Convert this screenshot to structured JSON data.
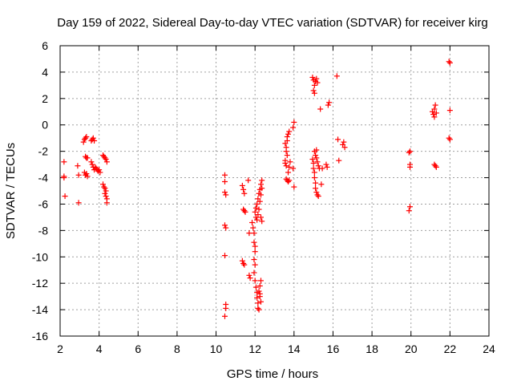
{
  "chart_data": {
    "type": "scatter",
    "title": "Day 159 of 2022, Sidereal Day-to-day VTEC variation (SDTVAR) for receiver kirg",
    "xlabel": "GPS time / hours",
    "ylabel": "SDTVAR / TECUs",
    "xlim": [
      2,
      24
    ],
    "ylim": [
      -16,
      6
    ],
    "xticks": [
      "2",
      "4",
      "6",
      "8",
      "10",
      "12",
      "14",
      "16",
      "18",
      "20",
      "22",
      "24"
    ],
    "yticks": [
      "6",
      "4",
      "2",
      "0",
      "-2",
      "-4",
      "-6",
      "-8",
      "-10",
      "-12",
      "-14",
      "-16"
    ],
    "grid": true,
    "marker": "+",
    "color": "#ff0000",
    "series": [
      {
        "name": "SDTVAR",
        "points": [
          [
            2.2,
            -2.8
          ],
          [
            2.2,
            -3.9
          ],
          [
            2.2,
            -4.0
          ],
          [
            2.25,
            -5.4
          ],
          [
            2.9,
            -3.1
          ],
          [
            2.95,
            -3.8
          ],
          [
            2.95,
            -5.9
          ],
          [
            3.2,
            -1.3
          ],
          [
            3.25,
            -1.1
          ],
          [
            3.3,
            -1.0
          ],
          [
            3.35,
            -0.9
          ],
          [
            3.3,
            -2.4
          ],
          [
            3.35,
            -2.5
          ],
          [
            3.4,
            -2.5
          ],
          [
            3.25,
            -3.6
          ],
          [
            3.3,
            -3.8
          ],
          [
            3.35,
            -3.7
          ],
          [
            3.4,
            -3.9
          ],
          [
            3.6,
            -1.2
          ],
          [
            3.65,
            -1.1
          ],
          [
            3.7,
            -1.0
          ],
          [
            3.75,
            -1.2
          ],
          [
            3.6,
            -2.8
          ],
          [
            3.65,
            -3.0
          ],
          [
            3.7,
            -3.2
          ],
          [
            3.75,
            -3.4
          ],
          [
            3.8,
            -3.2
          ],
          [
            3.85,
            -3.3
          ],
          [
            3.9,
            -3.4
          ],
          [
            3.95,
            -3.5
          ],
          [
            4.0,
            -3.4
          ],
          [
            4.05,
            -3.6
          ],
          [
            4.2,
            -2.3
          ],
          [
            4.25,
            -2.4
          ],
          [
            4.3,
            -2.5
          ],
          [
            4.35,
            -2.6
          ],
          [
            4.4,
            -2.8
          ],
          [
            4.2,
            -4.5
          ],
          [
            4.25,
            -4.7
          ],
          [
            4.3,
            -4.8
          ],
          [
            4.35,
            -5.0
          ],
          [
            4.3,
            -5.2
          ],
          [
            4.35,
            -5.4
          ],
          [
            4.4,
            -5.6
          ],
          [
            4.4,
            -5.9
          ],
          [
            10.45,
            -3.8
          ],
          [
            10.45,
            -4.3
          ],
          [
            10.45,
            -5.1
          ],
          [
            10.5,
            -5.3
          ],
          [
            10.45,
            -7.6
          ],
          [
            10.5,
            -7.8
          ],
          [
            10.45,
            -9.9
          ],
          [
            10.5,
            -13.6
          ],
          [
            10.5,
            -13.9
          ],
          [
            10.45,
            -14.5
          ],
          [
            11.35,
            -4.6
          ],
          [
            11.4,
            -4.9
          ],
          [
            11.45,
            -5.2
          ],
          [
            11.4,
            -6.4
          ],
          [
            11.45,
            -6.5
          ],
          [
            11.5,
            -6.6
          ],
          [
            11.35,
            -10.3
          ],
          [
            11.4,
            -10.5
          ],
          [
            11.45,
            -10.6
          ],
          [
            11.65,
            -4.2
          ],
          [
            11.7,
            -8.2
          ],
          [
            11.7,
            -11.4
          ],
          [
            11.75,
            -11.6
          ],
          [
            11.85,
            -7.4
          ],
          [
            11.9,
            -7.8
          ],
          [
            11.95,
            -8.2
          ],
          [
            11.95,
            -8.9
          ],
          [
            12.0,
            -9.2
          ],
          [
            12.0,
            -9.6
          ],
          [
            11.95,
            -10.2
          ],
          [
            12.0,
            -10.6
          ],
          [
            11.95,
            -11.2
          ],
          [
            12.0,
            -11.8
          ],
          [
            12.05,
            -12.3
          ],
          [
            12.1,
            -12.7
          ],
          [
            12.1,
            -13.1
          ],
          [
            12.15,
            -13.5
          ],
          [
            12.15,
            -13.9
          ],
          [
            12.0,
            -6.6
          ],
          [
            12.05,
            -6.3
          ],
          [
            12.05,
            -7.0
          ],
          [
            12.1,
            -6.0
          ],
          [
            12.1,
            -7.2
          ],
          [
            12.15,
            -5.6
          ],
          [
            12.15,
            -6.8
          ],
          [
            12.2,
            -5.2
          ],
          [
            12.2,
            -6.4
          ],
          [
            12.25,
            -4.9
          ],
          [
            12.25,
            -5.8
          ],
          [
            12.3,
            -4.5
          ],
          [
            12.3,
            -5.3
          ],
          [
            12.35,
            -4.2
          ],
          [
            12.35,
            -4.8
          ],
          [
            12.3,
            -7.0
          ],
          [
            12.35,
            -7.3
          ],
          [
            12.2,
            -12.6
          ],
          [
            12.25,
            -13.0
          ],
          [
            12.3,
            -13.4
          ],
          [
            12.3,
            -11.8
          ],
          [
            12.25,
            -12.2
          ],
          [
            12.2,
            -14.0
          ],
          [
            12.25,
            -12.8
          ],
          [
            13.55,
            -2.7
          ],
          [
            13.55,
            -2.9
          ],
          [
            13.6,
            -3.1
          ],
          [
            13.6,
            -2.0
          ],
          [
            13.65,
            -2.3
          ],
          [
            13.6,
            -1.7
          ],
          [
            13.65,
            -1.2
          ],
          [
            13.65,
            -0.9
          ],
          [
            13.7,
            -0.7
          ],
          [
            13.75,
            -0.5
          ],
          [
            13.6,
            -4.1
          ],
          [
            13.65,
            -4.2
          ],
          [
            13.7,
            -4.3
          ],
          [
            13.75,
            -4.2
          ],
          [
            13.7,
            -3.6
          ],
          [
            13.75,
            -3.2
          ],
          [
            13.8,
            -2.8
          ],
          [
            13.55,
            -1.4
          ],
          [
            13.95,
            -0.2
          ],
          [
            14.0,
            0.2
          ],
          [
            13.95,
            -3.3
          ],
          [
            14.0,
            -4.7
          ],
          [
            14.95,
            3.6
          ],
          [
            15.0,
            3.4
          ],
          [
            15.05,
            3.0
          ],
          [
            15.0,
            2.6
          ],
          [
            15.05,
            2.4
          ],
          [
            15.1,
            3.3
          ],
          [
            15.15,
            3.5
          ],
          [
            15.2,
            3.2
          ],
          [
            14.95,
            -2.6
          ],
          [
            15.0,
            -2.9
          ],
          [
            15.0,
            -3.3
          ],
          [
            15.05,
            -3.6
          ],
          [
            15.05,
            -4.0
          ],
          [
            15.1,
            -4.4
          ],
          [
            15.1,
            -4.8
          ],
          [
            15.15,
            -5.1
          ],
          [
            15.2,
            -5.3
          ],
          [
            15.25,
            -5.4
          ],
          [
            15.05,
            -2.0
          ],
          [
            15.1,
            -2.3
          ],
          [
            15.15,
            -2.5
          ],
          [
            15.15,
            -1.9
          ],
          [
            15.2,
            -2.8
          ],
          [
            15.25,
            -3.1
          ],
          [
            15.3,
            -3.3
          ],
          [
            15.35,
            1.2
          ],
          [
            15.45,
            -3.3
          ],
          [
            15.4,
            -4.5
          ],
          [
            15.65,
            -3.0
          ],
          [
            15.7,
            -3.2
          ],
          [
            15.75,
            1.5
          ],
          [
            15.8,
            1.7
          ],
          [
            16.2,
            3.7
          ],
          [
            16.25,
            -1.1
          ],
          [
            16.3,
            -2.7
          ],
          [
            16.5,
            -1.5
          ],
          [
            16.55,
            -1.3
          ],
          [
            16.6,
            -1.7
          ],
          [
            19.9,
            -2.1
          ],
          [
            19.95,
            -2.0
          ],
          [
            19.95,
            -3.0
          ],
          [
            19.95,
            -3.2
          ],
          [
            19.95,
            -6.2
          ],
          [
            19.9,
            -6.5
          ],
          [
            21.1,
            1.0
          ],
          [
            21.15,
            0.8
          ],
          [
            21.2,
            1.2
          ],
          [
            21.2,
            0.6
          ],
          [
            21.25,
            1.5
          ],
          [
            21.3,
            0.9
          ],
          [
            21.2,
            -3.0
          ],
          [
            21.25,
            -3.1
          ],
          [
            21.3,
            -3.2
          ],
          [
            21.95,
            4.8
          ],
          [
            22.0,
            4.7
          ],
          [
            22.0,
            1.1
          ],
          [
            21.95,
            -1.0
          ],
          [
            22.0,
            -1.1
          ]
        ]
      }
    ]
  }
}
